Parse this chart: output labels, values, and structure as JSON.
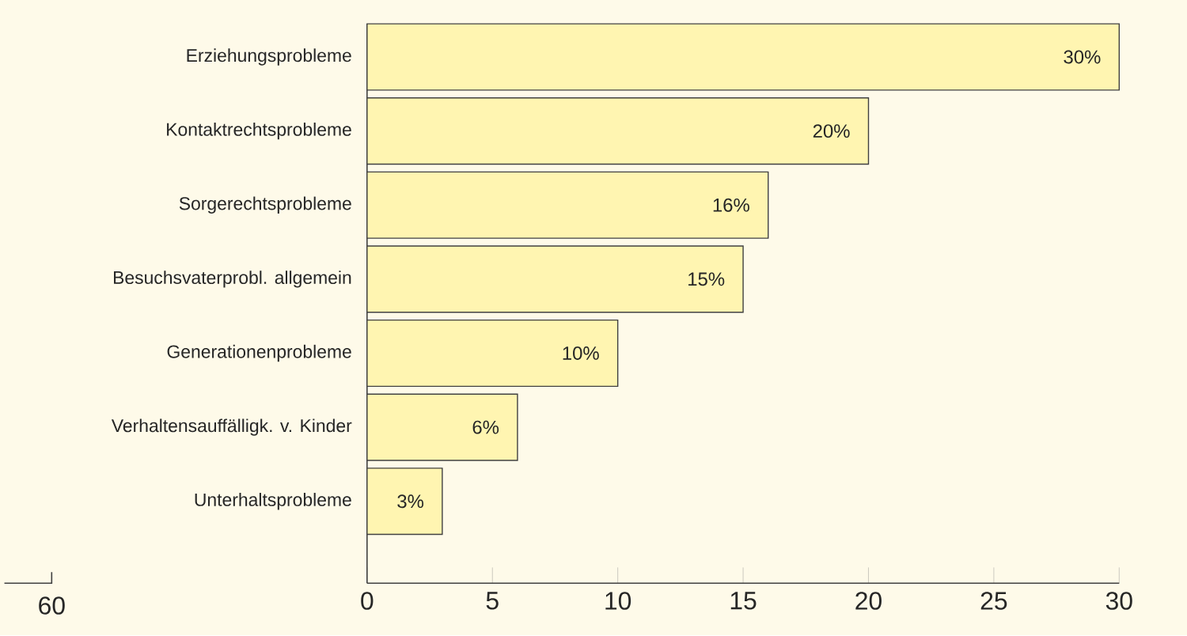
{
  "chart_data": {
    "type": "bar",
    "orientation": "horizontal",
    "categories": [
      "Erziehungsprobleme",
      "Kontaktrechtsprobleme",
      "Sorgerechtsprobleme",
      "Besuchsvaterprobl. allgemein",
      "Generationenprobleme",
      "Verhaltensauffälligk. v. Kinder",
      "Unterhaltsprobleme"
    ],
    "values": [
      30,
      20,
      16,
      15,
      10,
      6,
      3
    ],
    "value_labels": [
      "30%",
      "20%",
      "16%",
      "15%",
      "10%",
      "6%",
      "3%"
    ],
    "color": "#fff5b1",
    "xlim": [
      0,
      30
    ],
    "xticks": [
      0,
      5,
      10,
      15,
      20,
      25,
      30
    ],
    "annotations": [
      "60"
    ]
  }
}
